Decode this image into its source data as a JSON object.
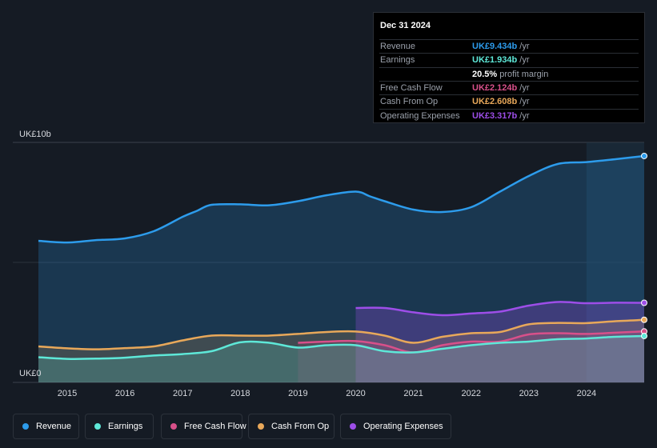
{
  "colors": {
    "revenue": "#2d9cec",
    "earnings": "#5ee8d8",
    "free_cash_flow": "#d8508a",
    "cash_from_op": "#e8a85a",
    "operating_expenses": "#9d4ee8",
    "background": "#151b24"
  },
  "tooltip": {
    "date": "Dec 31 2024",
    "rows": [
      {
        "label": "Revenue",
        "value": "UK£9.434b",
        "unit": "/yr",
        "color": "#2d9cec"
      },
      {
        "label": "Earnings",
        "value": "UK£1.934b",
        "unit": "/yr",
        "color": "#5ee8d8"
      },
      {
        "label": "",
        "value": "20.5%",
        "unit": "profit margin",
        "color": "#ffffff"
      },
      {
        "label": "Free Cash Flow",
        "value": "UK£2.124b",
        "unit": "/yr",
        "color": "#d8508a"
      },
      {
        "label": "Cash From Op",
        "value": "UK£2.608b",
        "unit": "/yr",
        "color": "#e8a85a"
      },
      {
        "label": "Operating Expenses",
        "value": "UK£3.317b",
        "unit": "/yr",
        "color": "#9d4ee8"
      }
    ]
  },
  "legend": [
    {
      "label": "Revenue",
      "color": "#2d9cec"
    },
    {
      "label": "Earnings",
      "color": "#5ee8d8"
    },
    {
      "label": "Free Cash Flow",
      "color": "#d8508a"
    },
    {
      "label": "Cash From Op",
      "color": "#e8a85a"
    },
    {
      "label": "Operating Expenses",
      "color": "#9d4ee8"
    }
  ],
  "chart_data": {
    "type": "area",
    "title": "",
    "xlabel": "",
    "ylabel": "",
    "y_top_label": "UK£10b",
    "y_bottom_label": "UK£0",
    "xlim": [
      2014.5,
      2025.0
    ],
    "ylim": [
      0,
      10
    ],
    "x_ticks": [
      "2015",
      "2016",
      "2017",
      "2018",
      "2019",
      "2020",
      "2021",
      "2022",
      "2023",
      "2024"
    ],
    "x_tick_values": [
      2015,
      2016,
      2017,
      2018,
      2019,
      2020,
      2021,
      2022,
      2023,
      2024
    ],
    "highlight_from": 2024.0,
    "series": [
      {
        "name": "Revenue",
        "key": "revenue",
        "x": [
          2014.5,
          2015.0,
          2015.5,
          2016.0,
          2016.5,
          2017.0,
          2017.25,
          2017.5,
          2018.0,
          2018.5,
          2019.0,
          2019.5,
          2020.0,
          2020.25,
          2020.5,
          2021.0,
          2021.5,
          2022.0,
          2022.5,
          2023.0,
          2023.5,
          2024.0,
          2024.5,
          2025.0
        ],
        "values": [
          5.9,
          5.83,
          5.93,
          6.0,
          6.3,
          6.9,
          7.15,
          7.4,
          7.42,
          7.38,
          7.55,
          7.8,
          7.95,
          7.75,
          7.55,
          7.2,
          7.1,
          7.3,
          7.95,
          8.6,
          9.1,
          9.18,
          9.3,
          9.434
        ]
      },
      {
        "name": "Earnings",
        "key": "earnings",
        "x": [
          2014.5,
          2015.0,
          2015.5,
          2016.0,
          2016.5,
          2017.0,
          2017.5,
          2018.0,
          2018.5,
          2019.0,
          2019.5,
          2020.0,
          2020.5,
          2021.0,
          2021.5,
          2022.0,
          2022.5,
          2023.0,
          2023.5,
          2024.0,
          2024.5,
          2025.0
        ],
        "values": [
          1.05,
          0.98,
          0.99,
          1.03,
          1.12,
          1.18,
          1.3,
          1.67,
          1.65,
          1.45,
          1.55,
          1.55,
          1.3,
          1.25,
          1.4,
          1.55,
          1.65,
          1.7,
          1.8,
          1.83,
          1.9,
          1.934
        ]
      },
      {
        "name": "Free Cash Flow",
        "key": "free_cash_flow",
        "x": [
          2019.0,
          2019.5,
          2020.0,
          2020.5,
          2021.0,
          2021.5,
          2022.0,
          2022.5,
          2023.0,
          2023.5,
          2024.0,
          2024.5,
          2025.0
        ],
        "values": [
          1.65,
          1.7,
          1.72,
          1.55,
          1.25,
          1.55,
          1.7,
          1.7,
          2.0,
          2.05,
          2.02,
          2.07,
          2.124
        ]
      },
      {
        "name": "Cash From Op",
        "key": "cash_from_op",
        "x": [
          2014.5,
          2015.0,
          2015.5,
          2016.0,
          2016.5,
          2017.0,
          2017.5,
          2018.0,
          2018.5,
          2019.0,
          2019.5,
          2020.0,
          2020.5,
          2021.0,
          2021.5,
          2022.0,
          2022.5,
          2023.0,
          2023.5,
          2024.0,
          2024.5,
          2025.0
        ],
        "values": [
          1.5,
          1.42,
          1.38,
          1.43,
          1.5,
          1.75,
          1.95,
          1.95,
          1.95,
          2.02,
          2.1,
          2.12,
          1.95,
          1.65,
          1.9,
          2.05,
          2.1,
          2.42,
          2.48,
          2.47,
          2.55,
          2.608
        ]
      },
      {
        "name": "Operating Expenses",
        "key": "operating_expenses",
        "x": [
          2020.0,
          2020.5,
          2021.0,
          2021.5,
          2022.0,
          2022.5,
          2023.0,
          2023.5,
          2024.0,
          2024.5,
          2025.0
        ],
        "values": [
          3.1,
          3.1,
          2.92,
          2.8,
          2.87,
          2.95,
          3.2,
          3.35,
          3.3,
          3.32,
          3.317
        ]
      }
    ]
  }
}
